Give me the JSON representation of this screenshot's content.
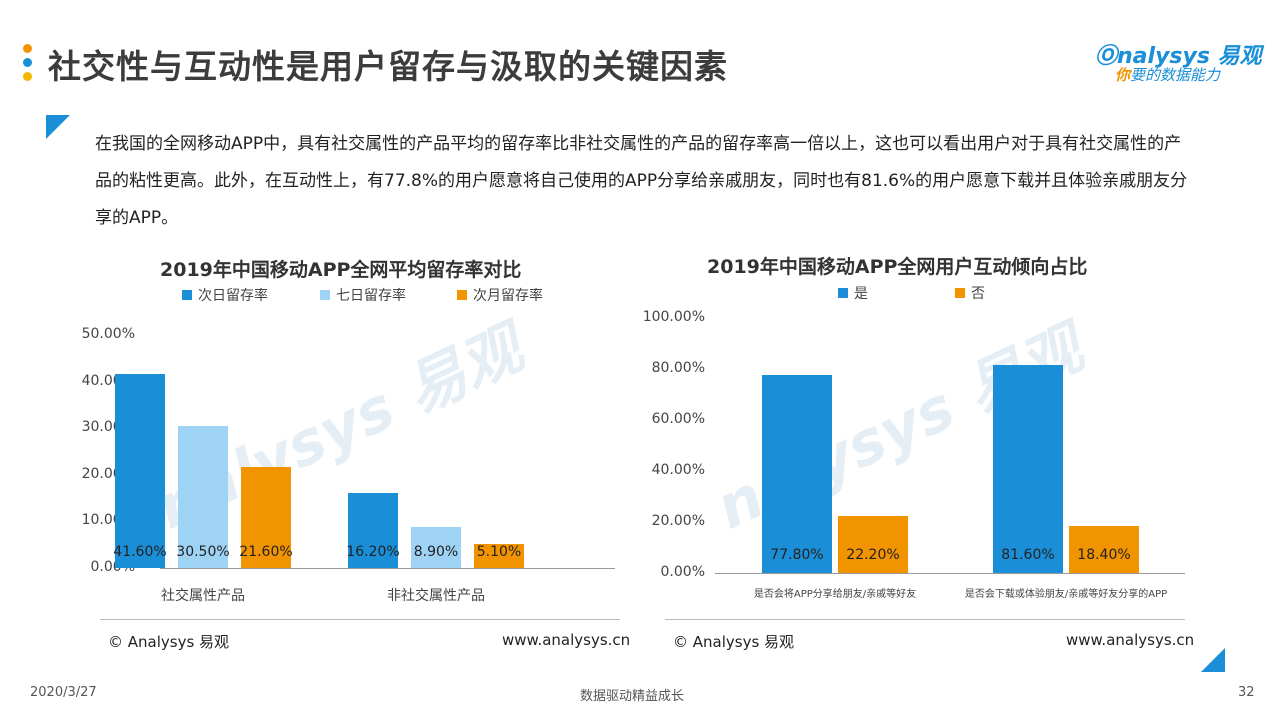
{
  "header": {
    "title": "社交性与互动性是用户留存与汲取的关键因素",
    "logo_brand": "nalysys 易观",
    "logo_slogan_accent": "你",
    "logo_slogan": "要的数据能力"
  },
  "paragraph": "在我国的全网移动APP中，具有社交属性的产品平均的留存率比非社交属性的产品的留存率高一倍以上，这也可以看出用户对于具有社交属性的产品的粘性更高。此外，在互动性上，有77.8%的用户愿意将自己使用的APP分享给亲戚朋友，同时也有81.6%的用户愿意下载并且体验亲戚朋友分享的APP。",
  "chart_data": [
    {
      "type": "bar",
      "title": "2019年中国移动APP全网平均留存率对比",
      "categories": [
        "社交属性产品",
        "非社交属性产品"
      ],
      "series": [
        {
          "name": "次日留存率",
          "color": "#1a8fd8",
          "values": [
            41.6,
            16.2
          ],
          "labels": [
            "41.60%",
            "16.20%"
          ]
        },
        {
          "name": "七日留存率",
          "color": "#9fd3f5",
          "values": [
            30.5,
            8.9
          ],
          "labels": [
            "30.50%",
            "8.90%"
          ]
        },
        {
          "name": "次月留存率",
          "color": "#f29300",
          "values": [
            21.6,
            5.1
          ],
          "labels": [
            "21.60%",
            "5.10%"
          ]
        }
      ],
      "ylim": [
        0,
        50
      ],
      "yticks": [
        "0.00%",
        "10.00%",
        "20.00%",
        "30.00%",
        "40.00%",
        "50.00%"
      ],
      "legend": "top"
    },
    {
      "type": "bar",
      "title": "2019年中国移动APP全网用户互动倾向占比",
      "categories": [
        "是否会将APP分享给朋友/亲戚等好友",
        "是否会下载或体验朋友/亲戚等好友分享的APP"
      ],
      "series": [
        {
          "name": "是",
          "color": "#1a8fd8",
          "values": [
            77.8,
            81.6
          ],
          "labels": [
            "77.80%",
            "81.60%"
          ]
        },
        {
          "name": "否",
          "color": "#f29300",
          "values": [
            22.2,
            18.4
          ],
          "labels": [
            "22.20%",
            "18.40%"
          ]
        }
      ],
      "ylim": [
        0,
        100
      ],
      "yticks": [
        "0.00%",
        "20.00%",
        "40.00%",
        "60.00%",
        "80.00%",
        "100.00%"
      ],
      "legend": "top"
    }
  ],
  "sources": {
    "left": "© Analysys 易观",
    "right": "www.analysys.cn"
  },
  "footer": {
    "date": "2020/3/27",
    "center": "数据驱动精益成长",
    "page": "32"
  },
  "watermark": "nalysys 易观"
}
